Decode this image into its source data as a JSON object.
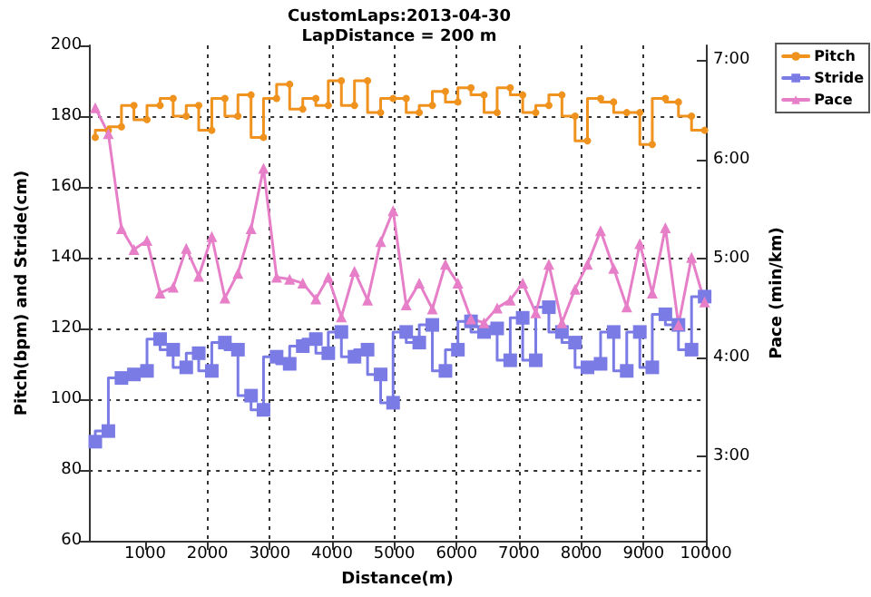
{
  "chart_data": {
    "type": "line",
    "title": "CustomLaps:2013-04-30",
    "subtitle": "LapDistance = 200 m",
    "xlabel": "Distance(m)",
    "ylabel": "Pitch(bpm) and Stride(cm)",
    "y2label": "Pace (min/km)",
    "x": [
      200,
      410,
      620,
      820,
      1030,
      1240,
      1450,
      1660,
      1860,
      2070,
      2280,
      2490,
      2700,
      2900,
      3110,
      3320,
      3530,
      3740,
      3940,
      4150,
      4360,
      4570,
      4780,
      4980,
      5190,
      5400,
      5610,
      5820,
      6020,
      6230,
      6440,
      6650,
      6860,
      7060,
      7270,
      7480,
      7690,
      7900,
      8100,
      8310,
      8520,
      8730,
      8940,
      9140,
      9350,
      9560,
      9770,
      9980
    ],
    "series": [
      {
        "name": "Pitch",
        "type": "step",
        "marker": "circle",
        "color": "#f0921e",
        "values": [
          174,
          176,
          177,
          183,
          179,
          183,
          185,
          180,
          183,
          176,
          185,
          180,
          186,
          174,
          185,
          189,
          182,
          185,
          183,
          190,
          183,
          190,
          181,
          185,
          185,
          181,
          183,
          187,
          184,
          188,
          186,
          181,
          188,
          186,
          181,
          183,
          186,
          180,
          173,
          185,
          184,
          181,
          181,
          172,
          185,
          184,
          180,
          176
        ]
      },
      {
        "name": "Stride",
        "type": "step",
        "marker": "square",
        "color": "#7b7be6",
        "values": [
          88,
          91,
          106,
          107,
          108,
          117,
          114,
          109,
          113,
          108,
          116,
          114,
          101,
          97,
          112,
          110,
          115,
          117,
          113,
          119,
          112,
          114,
          107,
          99,
          119,
          116,
          121,
          108,
          114,
          122,
          119,
          120,
          111,
          123,
          111,
          126,
          119,
          116,
          109,
          110,
          119,
          108,
          119,
          109,
          124,
          121,
          114,
          129
        ]
      },
      {
        "name": "Pace",
        "type": "line",
        "marker": "triangle",
        "axis": "y2",
        "color": "#e67fc8",
        "values": [
          6.52,
          6.26,
          5.3,
          5.09,
          5.18,
          4.65,
          4.71,
          5.1,
          4.82,
          5.22,
          4.6,
          4.85,
          5.3,
          5.91,
          4.81,
          4.79,
          4.75,
          4.59,
          4.81,
          4.41,
          4.87,
          4.58,
          5.17,
          5.48,
          4.53,
          4.75,
          4.49,
          4.94,
          4.75,
          4.39,
          4.35,
          4.5,
          4.58,
          4.75,
          4.45,
          4.94,
          4.35,
          4.69,
          4.94,
          5.28,
          4.9,
          4.51,
          5.15,
          4.65,
          5.31,
          4.33,
          5.01,
          4.56
        ]
      }
    ],
    "xlim": [
      100,
      10000
    ],
    "xticks": [
      1000,
      2000,
      3000,
      4000,
      5000,
      6000,
      7000,
      8000,
      9000,
      10000
    ],
    "ylim": [
      60,
      200
    ],
    "yticks": [
      60,
      80,
      100,
      120,
      140,
      160,
      180,
      200
    ],
    "y2lim": [
      2.15,
      7.15
    ],
    "y2ticks": [
      {
        "value": 3,
        "label": "3:00"
      },
      {
        "value": 4,
        "label": "4:00"
      },
      {
        "value": 5,
        "label": "5:00"
      },
      {
        "value": 6,
        "label": "6:00"
      },
      {
        "value": 7,
        "label": "7:00"
      }
    ],
    "grid": true,
    "legend": "top right",
    "line_style": "solid"
  }
}
